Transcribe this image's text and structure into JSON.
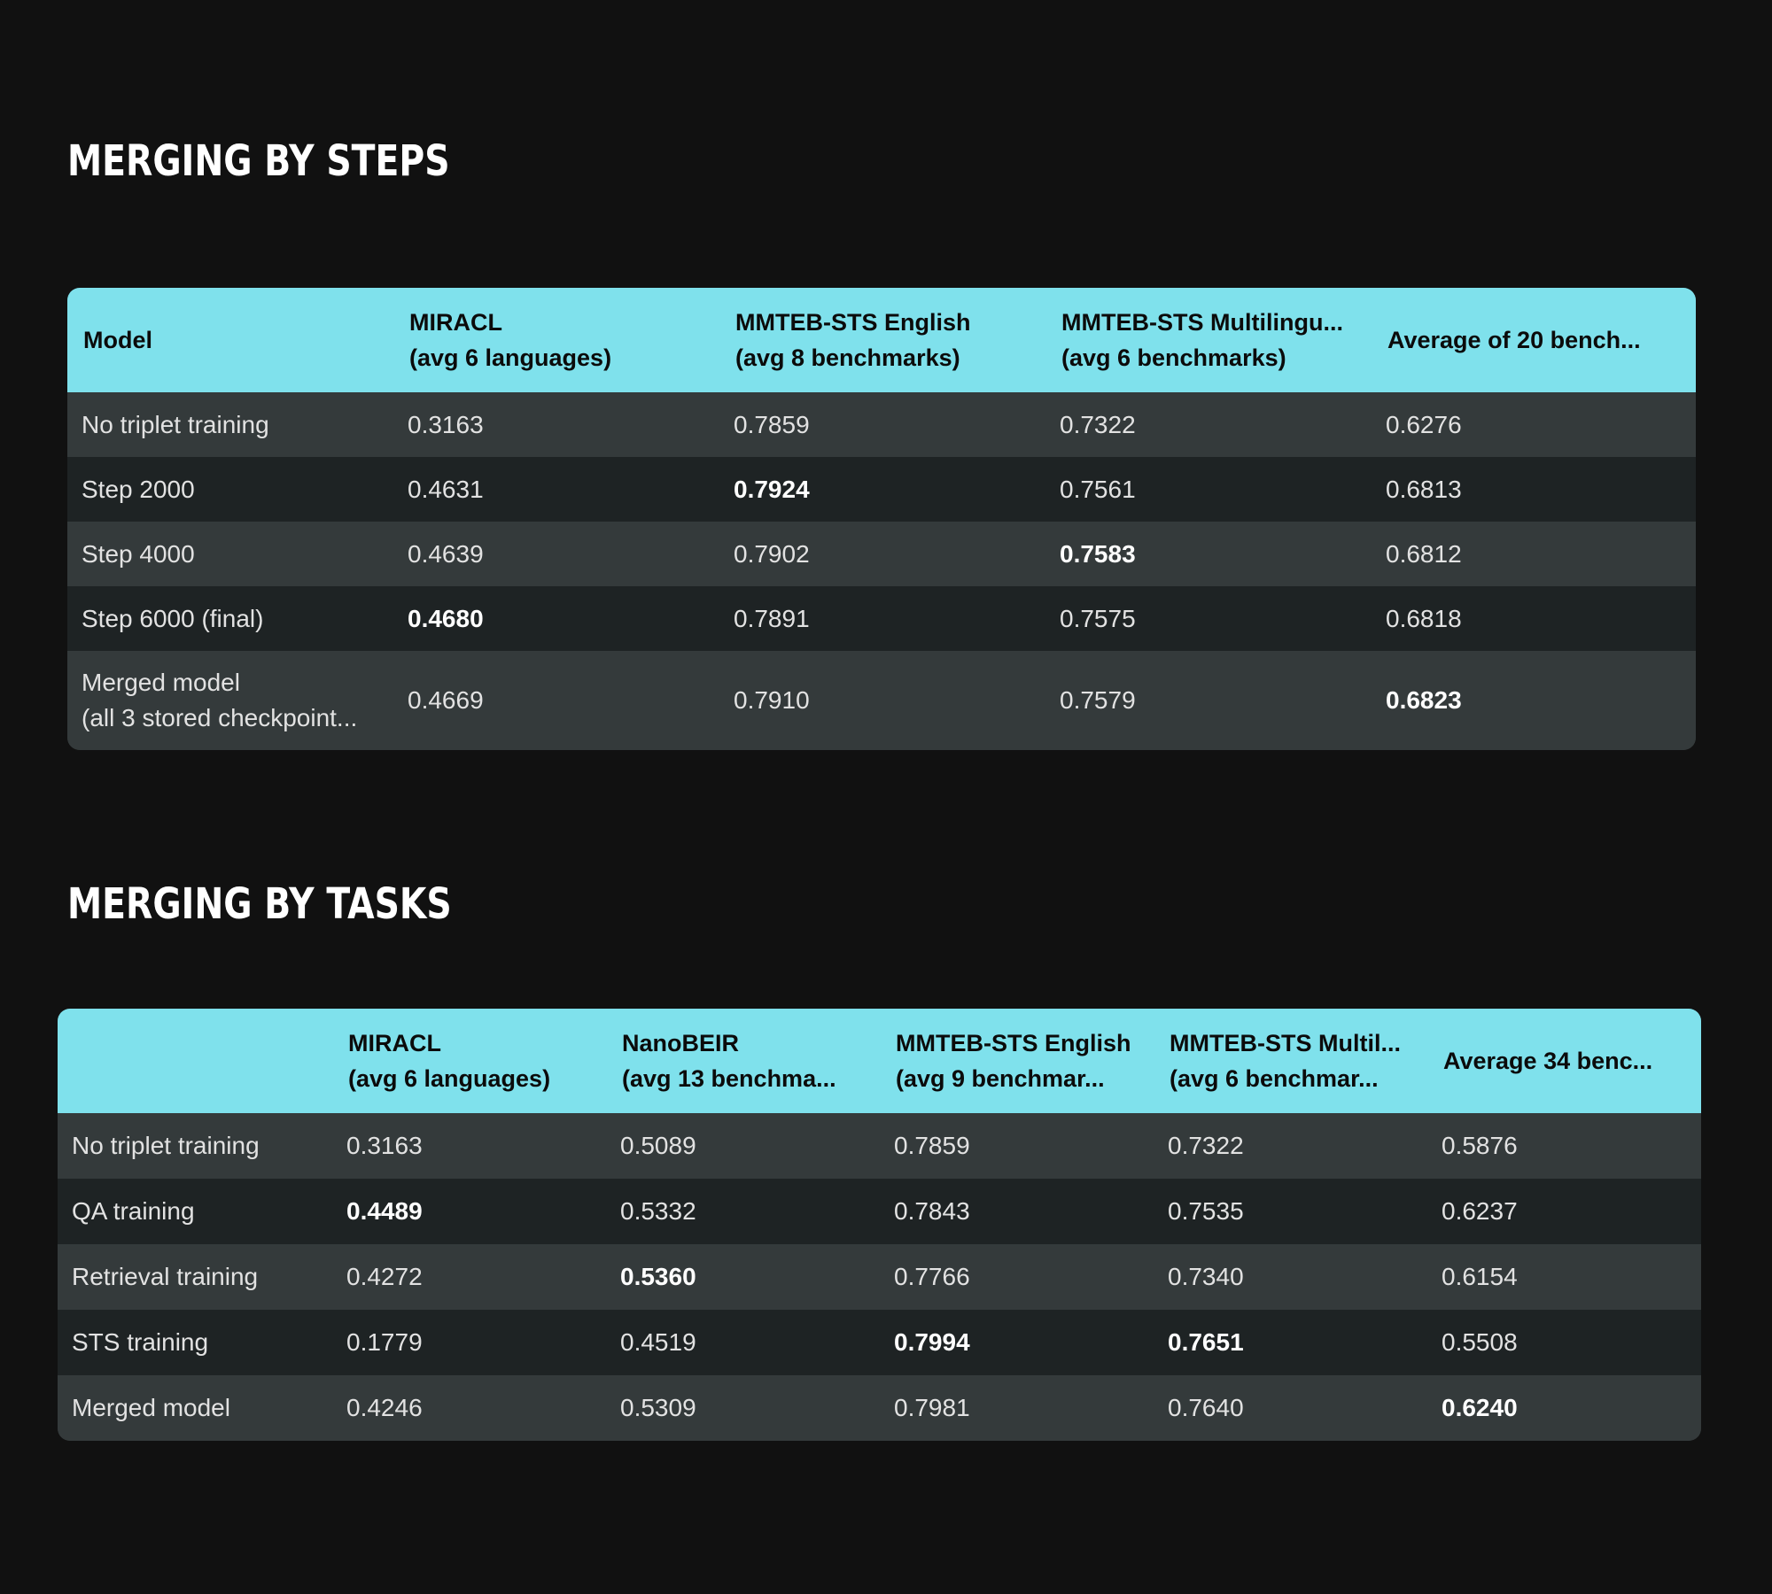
{
  "steps": {
    "title": "Merging by steps",
    "headers": [
      {
        "line1": "Model",
        "line2": ""
      },
      {
        "line1": "MIRACL",
        "line2": "(avg 6 languages)"
      },
      {
        "line1": "MMTEB-STS English",
        "line2": "(avg 8 benchmarks)"
      },
      {
        "line1": "MMTEB-STS Multilingu...",
        "line2": "(avg 6 benchmarks)"
      },
      {
        "line1": "Average of 20 bench...",
        "line2": ""
      }
    ],
    "rows": [
      {
        "model": "No triplet training",
        "model2": "",
        "miracl": "0.3163",
        "sts_en": "0.7859",
        "sts_multi": "0.7322",
        "avg": "0.6276"
      },
      {
        "model": "Step 2000",
        "model2": "",
        "miracl": "0.4631",
        "sts_en": "0.7924",
        "sts_multi": "0.7561",
        "avg": "0.6813"
      },
      {
        "model": "Step 4000",
        "model2": "",
        "miracl": "0.4639",
        "sts_en": "0.7902",
        "sts_multi": "0.7583",
        "avg": "0.6812"
      },
      {
        "model": "Step 6000 (final)",
        "model2": "",
        "miracl": "0.4680",
        "sts_en": "0.7891",
        "sts_multi": "0.7575",
        "avg": "0.6818"
      },
      {
        "model": "Merged model",
        "model2": "(all 3 stored checkpoint...",
        "miracl": "0.4669",
        "sts_en": "0.7910",
        "sts_multi": "0.7579",
        "avg": "0.6823"
      }
    ]
  },
  "tasks": {
    "title": "Merging by tasks",
    "headers": [
      {
        "line1": "",
        "line2": ""
      },
      {
        "line1": "MIRACL",
        "line2": "(avg 6 languages)"
      },
      {
        "line1": "NanoBEIR",
        "line2": "(avg 13 benchma..."
      },
      {
        "line1": "MMTEB-STS English",
        "line2": "(avg 9 benchmar..."
      },
      {
        "line1": "MMTEB-STS Multil...",
        "line2": "(avg 6 benchmar..."
      },
      {
        "line1": "Average 34 benc...",
        "line2": ""
      }
    ],
    "rows": [
      {
        "model": "No triplet training",
        "miracl": "0.3163",
        "nanobeir": "0.5089",
        "sts_en": "0.7859",
        "sts_multi": "0.7322",
        "avg": "0.5876"
      },
      {
        "model": "QA training",
        "miracl": "0.4489",
        "nanobeir": "0.5332",
        "sts_en": "0.7843",
        "sts_multi": "0.7535",
        "avg": "0.6237"
      },
      {
        "model": "Retrieval training",
        "miracl": "0.4272",
        "nanobeir": "0.5360",
        "sts_en": "0.7766",
        "sts_multi": "0.7340",
        "avg": "0.6154"
      },
      {
        "model": "STS training",
        "miracl": "0.1779",
        "nanobeir": "0.4519",
        "sts_en": "0.7994",
        "sts_multi": "0.7651",
        "avg": "0.5508"
      },
      {
        "model": "Merged model",
        "miracl": "0.4246",
        "nanobeir": "0.5309",
        "sts_en": "0.7981",
        "sts_multi": "0.7640",
        "avg": "0.6240"
      }
    ]
  }
}
